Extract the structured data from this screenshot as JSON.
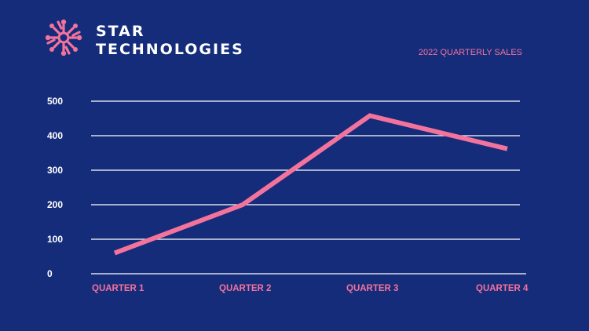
{
  "brand": {
    "line1": "STAR",
    "line2": "TECHNOLOGIES",
    "logo_icon": "circuit-star-logo-icon"
  },
  "colors": {
    "background": "#142c7a",
    "accent": "#f4739c",
    "gridline": "#ffffff",
    "text": "#ffffff"
  },
  "chart_data": {
    "type": "line",
    "title": "2022 QUARTERLY SALES",
    "categories": [
      "QUARTER 1",
      "QUARTER 2",
      "QUARTER 3",
      "QUARTER 4"
    ],
    "series": [
      {
        "values": [
          60,
          200,
          458,
          362
        ]
      }
    ],
    "yticks": [
      0,
      100,
      200,
      300,
      400,
      500
    ],
    "ylim": [
      0,
      500
    ],
    "grid": true,
    "legend": "none",
    "xlabel": "",
    "ylabel": ""
  }
}
